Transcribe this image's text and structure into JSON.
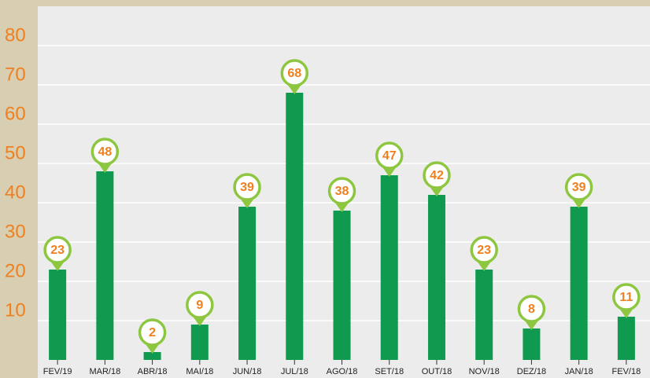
{
  "chart_data": {
    "type": "bar",
    "categories": [
      "FEV/19",
      "MAR/18",
      "ABR/18",
      "MAI/18",
      "JUN/18",
      "JUL/18",
      "AGO/18",
      "SET/18",
      "OUT/18",
      "NOV/18",
      "DEZ/18",
      "JAN/18",
      "FEV/18"
    ],
    "values": [
      23,
      48,
      2,
      9,
      39,
      68,
      38,
      47,
      42,
      23,
      8,
      39,
      11
    ],
    "color": "#0f9a4f",
    "ylim": [
      0,
      90
    ],
    "yticks": [
      10,
      20,
      30,
      40,
      50,
      60,
      70,
      80
    ],
    "grid": true
  }
}
